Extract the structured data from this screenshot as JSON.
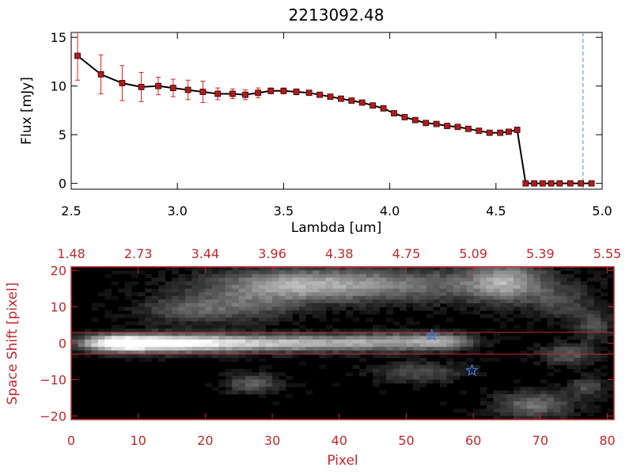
{
  "colors": {
    "axis": "#000000",
    "spectrum_line": "#000000",
    "points": "#b01c1c",
    "errorbars": "#e02020",
    "cutoff_line": "#3a8fd8",
    "lower_axis": "#c0282d",
    "trace_lines": "#c0282d",
    "stars": "#3a78e0"
  },
  "chart_data": [
    {
      "type": "line",
      "title": "2213092.48",
      "xlabel": "Lambda [um]",
      "ylabel": "Flux [mJy]",
      "xlim": [
        2.5,
        5.0
      ],
      "ylim": [
        -0.6,
        15.5
      ],
      "xticks": [
        {
          "v": 2.5,
          "label": "2.5"
        },
        {
          "v": 3.0,
          "label": "3.0"
        },
        {
          "v": 3.5,
          "label": "3.5"
        },
        {
          "v": 4.0,
          "label": "4.0"
        },
        {
          "v": 4.5,
          "label": "4.5"
        },
        {
          "v": 5.0,
          "label": "5.0"
        }
      ],
      "yticks": [
        {
          "v": 0,
          "label": "0"
        },
        {
          "v": 5,
          "label": "5"
        },
        {
          "v": 10,
          "label": "10"
        },
        {
          "v": 15,
          "label": "15"
        }
      ],
      "vline_x": 4.91,
      "series": [
        {
          "x": [
            2.53,
            2.64,
            2.74,
            2.83,
            2.91,
            2.98,
            3.05,
            3.12,
            3.19,
            3.26,
            3.32,
            3.38,
            3.44,
            3.5,
            3.56,
            3.62,
            3.67,
            3.72,
            3.77,
            3.82,
            3.87,
            3.92,
            3.97,
            4.02,
            4.07,
            4.12,
            4.17,
            4.22,
            4.27,
            4.32,
            4.37,
            4.42,
            4.47,
            4.52,
            4.56,
            4.6,
            4.64,
            4.68,
            4.72,
            4.76,
            4.8,
            4.85,
            4.9,
            4.95
          ],
          "y": [
            13.1,
            11.2,
            10.3,
            9.9,
            10.0,
            9.8,
            9.6,
            9.4,
            9.2,
            9.2,
            9.1,
            9.3,
            9.5,
            9.5,
            9.4,
            9.3,
            9.1,
            8.9,
            8.7,
            8.5,
            8.3,
            8.0,
            7.7,
            7.2,
            6.8,
            6.5,
            6.2,
            6.1,
            5.9,
            5.8,
            5.6,
            5.4,
            5.2,
            5.2,
            5.3,
            5.5,
            0.0,
            0.0,
            0.0,
            0.0,
            0.0,
            0.0,
            0.0,
            0.0
          ],
          "yerr": [
            2.5,
            2.0,
            1.8,
            1.5,
            0.9,
            0.9,
            1.0,
            1.1,
            0.6,
            0.5,
            0.5,
            0.5,
            0.3,
            0.3,
            0.3,
            0.2,
            0.2,
            0.2,
            0.2,
            0.2,
            0.2,
            0.2,
            0.2,
            0.2,
            0.2,
            0.2,
            0.2,
            0.2,
            0.2,
            0.2,
            0.2,
            0.2,
            0.2,
            0.2,
            0.2,
            0.2,
            0.0,
            0.0,
            0.0,
            0.0,
            0.0,
            0.0,
            0.0,
            0.0
          ]
        }
      ]
    },
    {
      "type": "heatmap",
      "xlabel": "Pixel",
      "ylabel": "Space Shift [pixel]",
      "xlim": [
        0,
        81
      ],
      "ylim": [
        -21,
        21
      ],
      "xticks": [
        {
          "v": 0,
          "label": "0"
        },
        {
          "v": 10,
          "label": "10"
        },
        {
          "v": 20,
          "label": "20"
        },
        {
          "v": 30,
          "label": "30"
        },
        {
          "v": 40,
          "label": "40"
        },
        {
          "v": 50,
          "label": "50"
        },
        {
          "v": 60,
          "label": "60"
        },
        {
          "v": 70,
          "label": "70"
        },
        {
          "v": 80,
          "label": "80"
        }
      ],
      "yticks": [
        {
          "v": -20,
          "label": "−20"
        },
        {
          "v": -10,
          "label": "−10"
        },
        {
          "v": 0,
          "label": "0"
        },
        {
          "v": 10,
          "label": "10"
        },
        {
          "v": 20,
          "label": "20"
        }
      ],
      "top_ticks": [
        {
          "v": 0,
          "label": "1.48"
        },
        {
          "v": 10,
          "label": "2.73"
        },
        {
          "v": 20,
          "label": "3.44"
        },
        {
          "v": 30,
          "label": "3.96"
        },
        {
          "v": 40,
          "label": "4.38"
        },
        {
          "v": 50,
          "label": "4.75"
        },
        {
          "v": 60,
          "label": "5.09"
        },
        {
          "v": 70,
          "label": "5.39"
        },
        {
          "v": 80,
          "label": "5.55"
        }
      ],
      "trace_lines_y": [
        3,
        -3
      ],
      "stars": [
        {
          "x": 53.8,
          "y": 2.2
        },
        {
          "x": 59.8,
          "y": -7.5
        }
      ]
    }
  ]
}
